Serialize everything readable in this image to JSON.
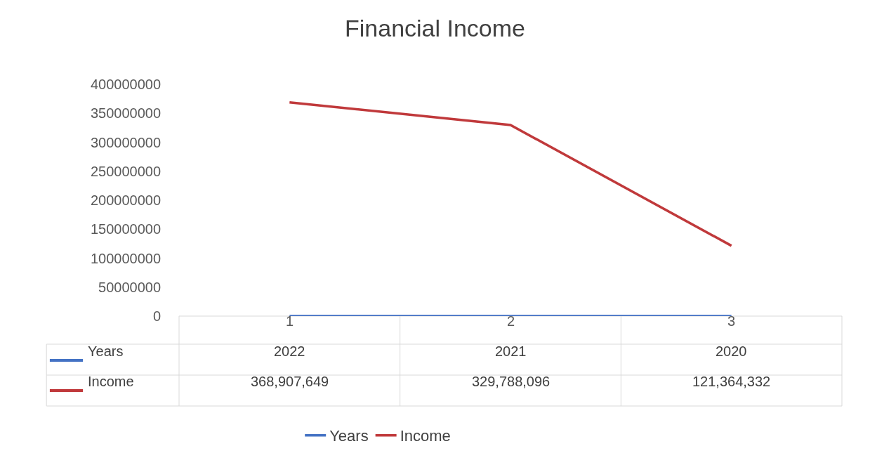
{
  "chart_data": {
    "type": "line",
    "title": "Financial Income",
    "categories": [
      "1",
      "2",
      "3"
    ],
    "series": [
      {
        "name": "Years",
        "color": "#4472c4",
        "values": [
          2022,
          2021,
          2020
        ],
        "value_labels": [
          "2022",
          "2021",
          "2020"
        ]
      },
      {
        "name": "Income",
        "color": "#c0393b",
        "values": [
          368907649,
          329788096,
          121364332
        ],
        "value_labels": [
          "368,907,649",
          "329,788,096",
          "121,364,332"
        ]
      }
    ],
    "ylim": [
      0,
      400000000
    ],
    "yticks": [
      0,
      50000000,
      100000000,
      150000000,
      200000000,
      250000000,
      300000000,
      350000000,
      400000000
    ],
    "legend": "bottom",
    "marker": "none",
    "line_style": "solid"
  }
}
